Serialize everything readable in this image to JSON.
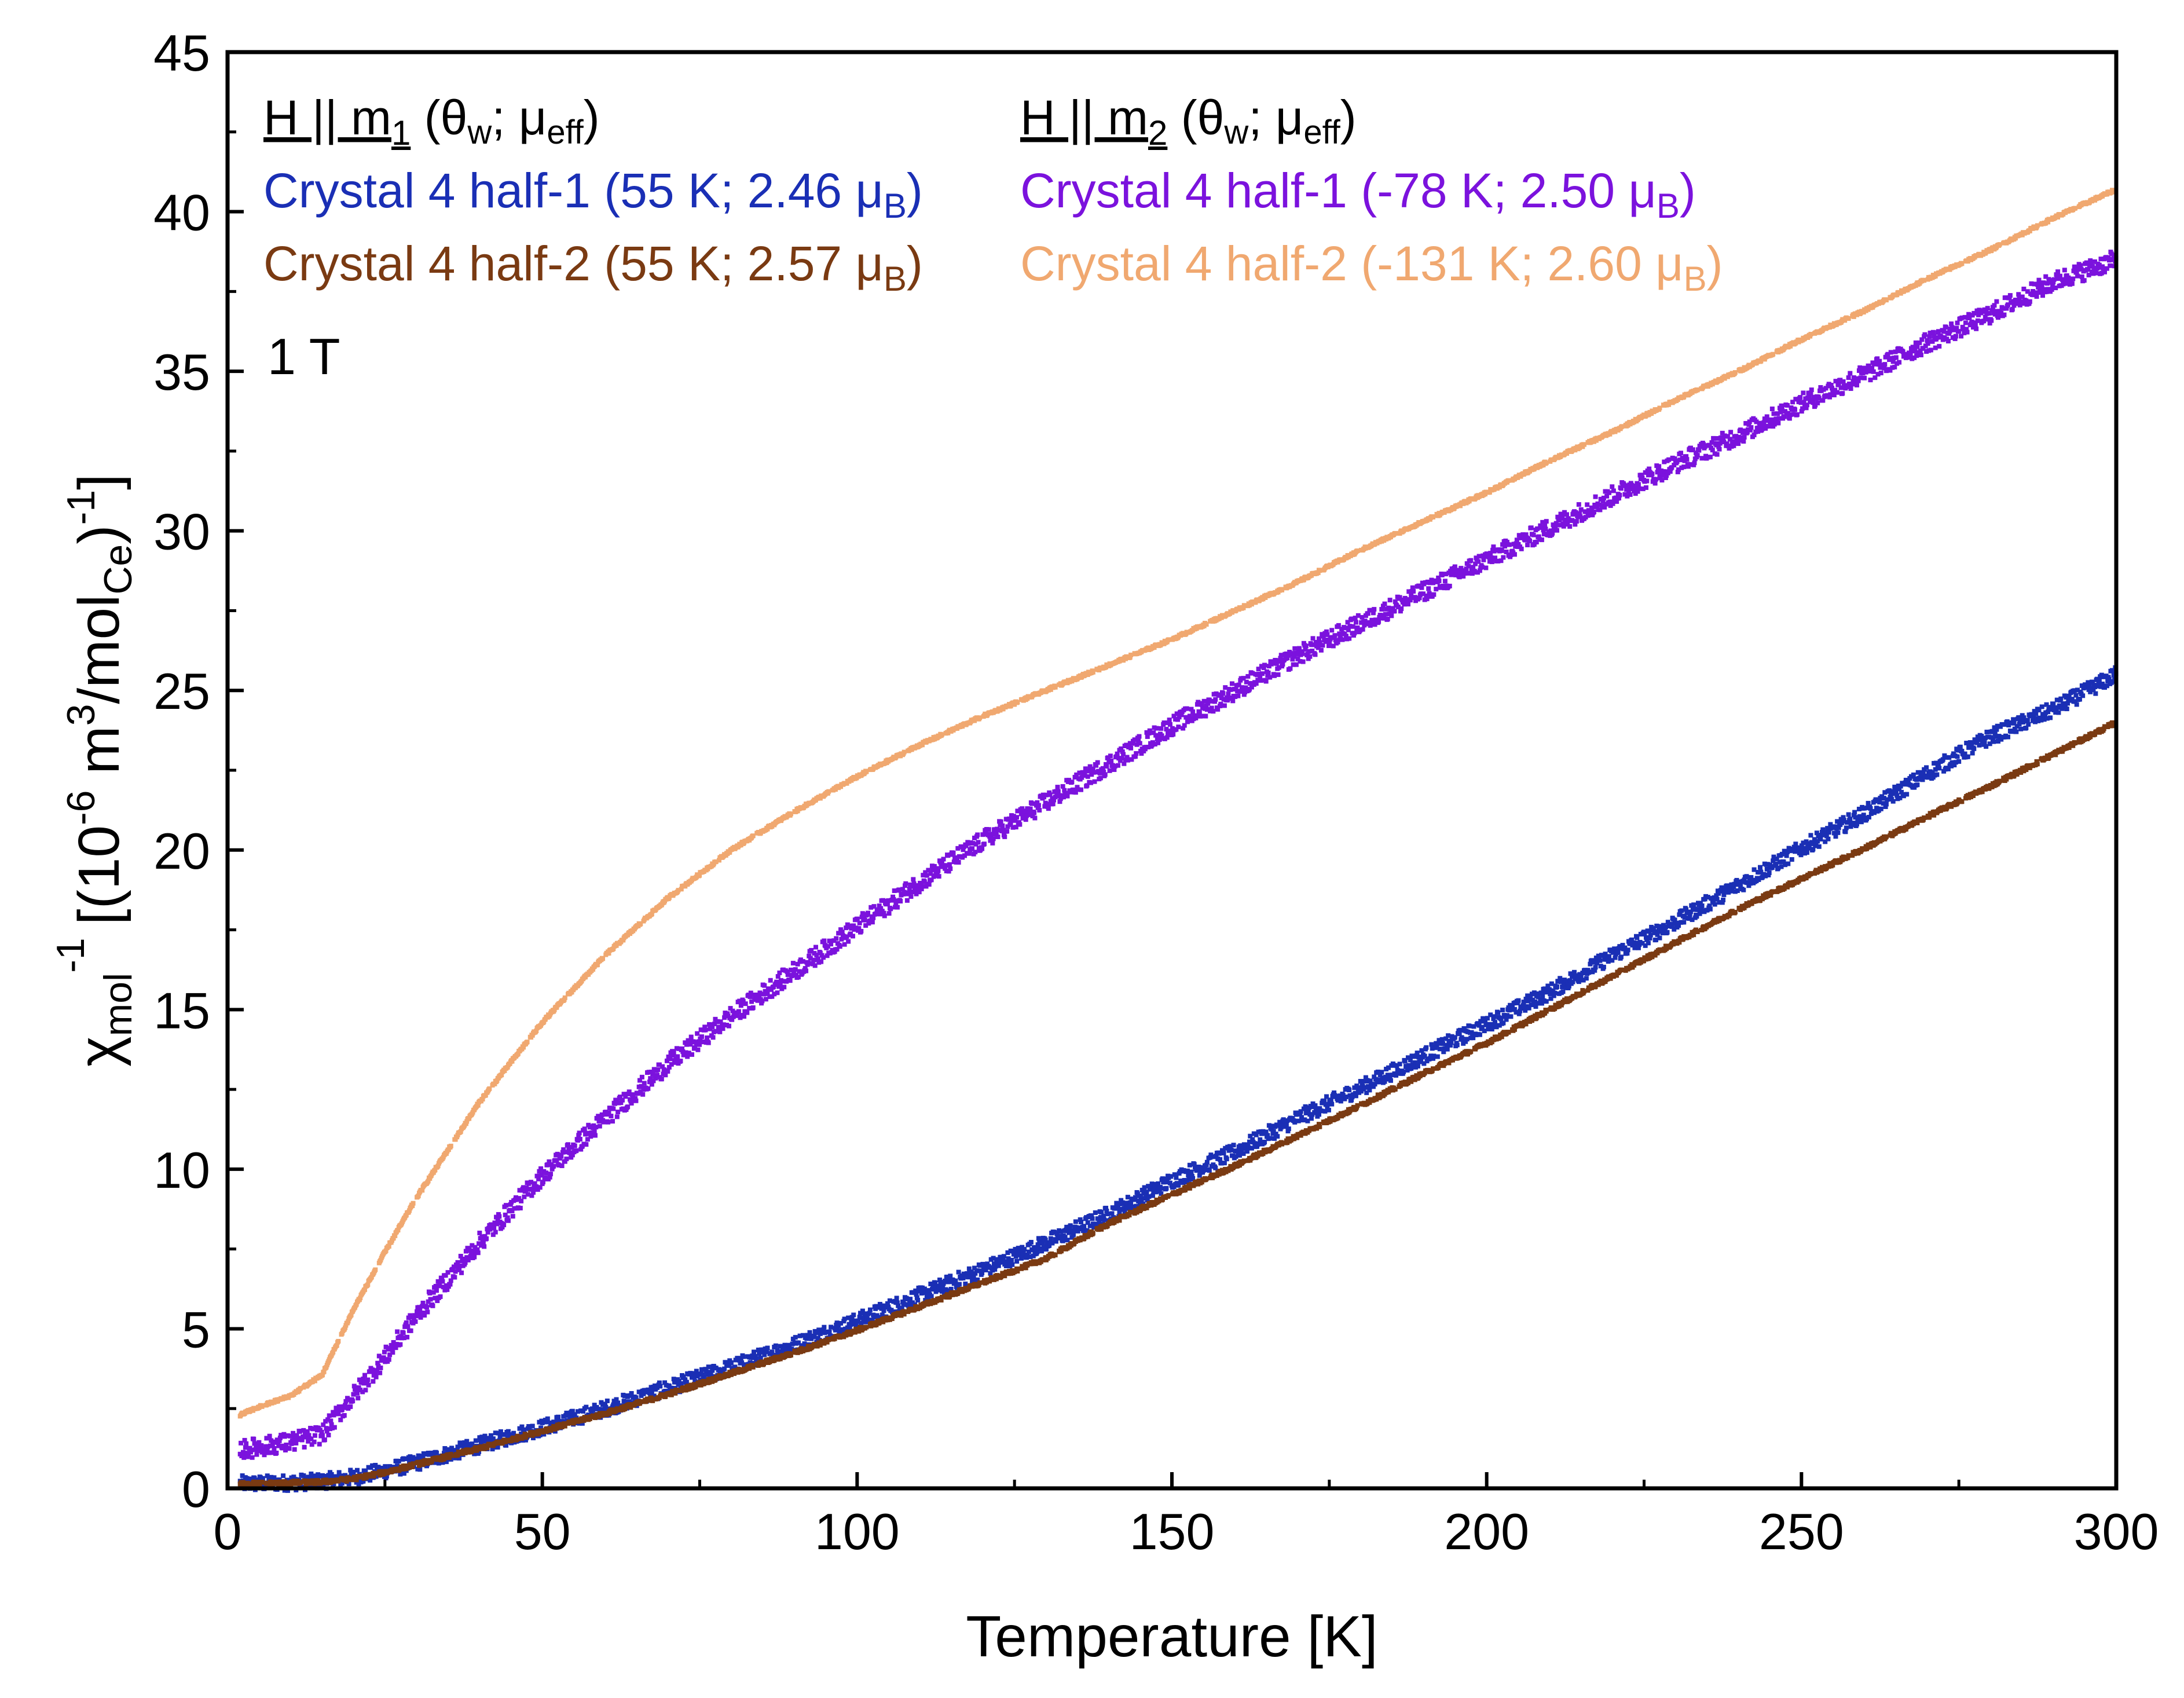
{
  "chart_data": {
    "type": "scatter",
    "title": "",
    "xlabel": "Temperature [K]",
    "ylabel": {
      "main": "χ",
      "main_sub": "mol",
      "main_sup": "-1",
      "bracket_open": "[(10",
      "exp": "-6",
      "unit_m": " m",
      "unit_m_sup": "3",
      "unit_mol": "/mol",
      "unit_mol_sub": "Ce",
      "bracket_close": ")",
      "close_sup": "-1",
      "end": "]"
    },
    "xlim": [
      0,
      300
    ],
    "ylim": [
      0,
      45
    ],
    "xticks": [
      0,
      50,
      100,
      150,
      200,
      250,
      300
    ],
    "yticks": [
      0,
      5,
      10,
      15,
      20,
      25,
      30,
      35,
      40,
      45
    ],
    "grid": false,
    "field_annotation": "1 T",
    "legend_groups": [
      {
        "header": {
          "prefix": "H || m",
          "sub": "1",
          "open": " (θ",
          "theta_sub": "w",
          "mid": "; μ",
          "mu_sub": "eff",
          "close": ")"
        },
        "entries": [
          {
            "prefix": "Crystal 4 half-1 (55 K; 2.46 μ",
            "sub": "B",
            "suffix": ")",
            "color": "#1a2fb5"
          },
          {
            "prefix": "Crystal 4 half-2 (55 K; 2.57 μ",
            "sub": "B",
            "suffix": ")",
            "color": "#7a3a12"
          }
        ]
      },
      {
        "header": {
          "prefix": "H || m",
          "sub": "2",
          "open": " (θ",
          "theta_sub": "w",
          "mid": "; μ",
          "mu_sub": "eff",
          "close": ")"
        },
        "entries": [
          {
            "prefix": "Crystal 4 half-1 (-78 K; 2.50 μ",
            "sub": "B",
            "suffix": ")",
            "color": "#7b12dd"
          },
          {
            "prefix": "Crystal 4 half-2 (-131 K; 2.60 μ",
            "sub": "B",
            "suffix": ")",
            "color": "#f0a870"
          }
        ]
      }
    ],
    "series": [
      {
        "name": "H || m1 Crystal 4 half-1 (55 K; 2.46 μB)",
        "color": "#1a2fb5",
        "noise": 0.25,
        "x": [
          2,
          5,
          10,
          15,
          20,
          25,
          30,
          40,
          50,
          60,
          70,
          80,
          90,
          100,
          110,
          120,
          130,
          140,
          150,
          160,
          170,
          180,
          190,
          200,
          210,
          220,
          230,
          240,
          250,
          260,
          270,
          280,
          290,
          300
        ],
        "y": [
          0.15,
          0.15,
          0.18,
          0.22,
          0.35,
          0.55,
          0.8,
          1.35,
          1.9,
          2.5,
          3.15,
          3.8,
          4.5,
          5.25,
          6.05,
          6.85,
          7.7,
          8.6,
          9.65,
          10.55,
          11.6,
          12.55,
          13.55,
          14.55,
          15.55,
          16.7,
          17.75,
          18.9,
          20.05,
          21.15,
          22.4,
          23.55,
          24.4,
          25.5
        ]
      },
      {
        "name": "H || m1 Crystal 4 half-2 (55 K; 2.57 μB)",
        "color": "#7a3a12",
        "noise": 0.06,
        "x": [
          2,
          5,
          10,
          15,
          20,
          25,
          30,
          40,
          50,
          60,
          70,
          80,
          90,
          100,
          110,
          120,
          130,
          140,
          150,
          160,
          170,
          180,
          190,
          200,
          210,
          220,
          230,
          240,
          250,
          260,
          270,
          280,
          290,
          300
        ],
        "y": [
          0.15,
          0.15,
          0.17,
          0.2,
          0.3,
          0.5,
          0.75,
          1.25,
          1.8,
          2.35,
          2.95,
          3.6,
          4.25,
          4.95,
          5.7,
          6.45,
          7.2,
          8.3,
          9.2,
          10.1,
          11.05,
          12.0,
          13.0,
          13.95,
          15.0,
          16.05,
          17.1,
          18.15,
          19.1,
          20.05,
          21.05,
          22.0,
          23.0,
          24.0
        ]
      },
      {
        "name": "H || m2 Crystal 4 half-1 (-78 K; 2.50 μB)",
        "color": "#7b12dd",
        "noise": 0.3,
        "x": [
          2,
          5,
          10,
          15,
          20,
          25,
          30,
          40,
          50,
          60,
          70,
          80,
          90,
          100,
          110,
          120,
          130,
          140,
          150,
          160,
          170,
          180,
          190,
          200,
          210,
          220,
          230,
          240,
          250,
          260,
          270,
          280,
          290,
          300
        ],
        "y": [
          1.2,
          1.3,
          1.45,
          1.7,
          2.9,
          4.1,
          5.4,
          7.7,
          9.8,
          11.6,
          13.3,
          14.8,
          16.2,
          17.6,
          19.0,
          20.3,
          21.5,
          22.7,
          23.9,
          25.0,
          26.1,
          27.1,
          28.1,
          29.1,
          30.1,
          31.1,
          32.1,
          33.0,
          34.0,
          34.9,
          35.9,
          36.8,
          37.8,
          38.5
        ]
      },
      {
        "name": "H || m2 Crystal 4 half-2 (-131 K; 2.60 μB)",
        "color": "#f0a870",
        "noise": 0.04,
        "x": [
          2,
          5,
          10,
          15,
          20,
          25,
          30,
          40,
          50,
          60,
          70,
          80,
          90,
          100,
          110,
          120,
          130,
          140,
          150,
          160,
          170,
          180,
          190,
          200,
          210,
          220,
          230,
          240,
          250,
          260,
          270,
          280,
          290,
          300
        ],
        "y": [
          2.3,
          2.55,
          2.9,
          3.55,
          5.6,
          7.4,
          9.1,
          12.1,
          14.6,
          16.7,
          18.5,
          20.0,
          21.2,
          22.3,
          23.3,
          24.2,
          25.0,
          25.8,
          26.6,
          27.5,
          28.4,
          29.4,
          30.3,
          31.2,
          32.2,
          33.1,
          34.1,
          35.0,
          36.0,
          36.9,
          37.9,
          38.8,
          39.8,
          40.7
        ]
      }
    ]
  }
}
